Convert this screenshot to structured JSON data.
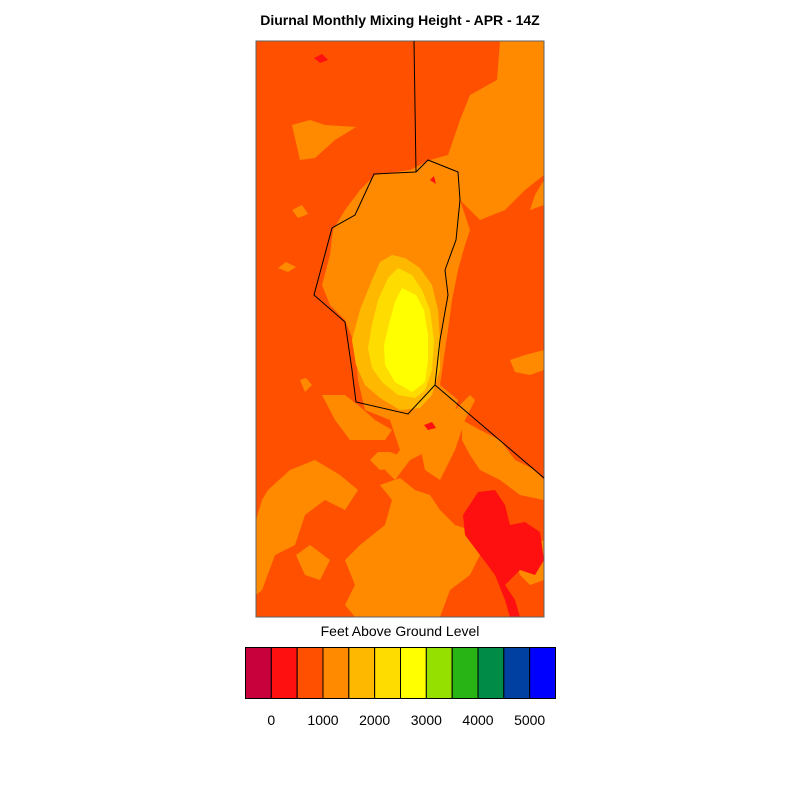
{
  "title": "Diurnal Monthly Mixing Height - APR - 14Z",
  "legend": {
    "title": "Feet Above Ground Level",
    "colors": [
      "#c8003c",
      "#ff1010",
      "#ff5000",
      "#ff8a00",
      "#ffb800",
      "#ffdc00",
      "#ffff00",
      "#96e000",
      "#28b414",
      "#008c46",
      "#0040a0",
      "#0000ff"
    ],
    "ticks": [
      "0",
      "1000",
      "2000",
      "3000",
      "4000",
      "5000"
    ]
  },
  "map": {
    "fill_colors": {
      "base": "#ff5000",
      "orange": "#ff8a00",
      "amber": "#ffb800",
      "gold": "#ffdc00",
      "yellow": "#ffff00",
      "red": "#ff1010",
      "boundary": "#000000"
    }
  }
}
